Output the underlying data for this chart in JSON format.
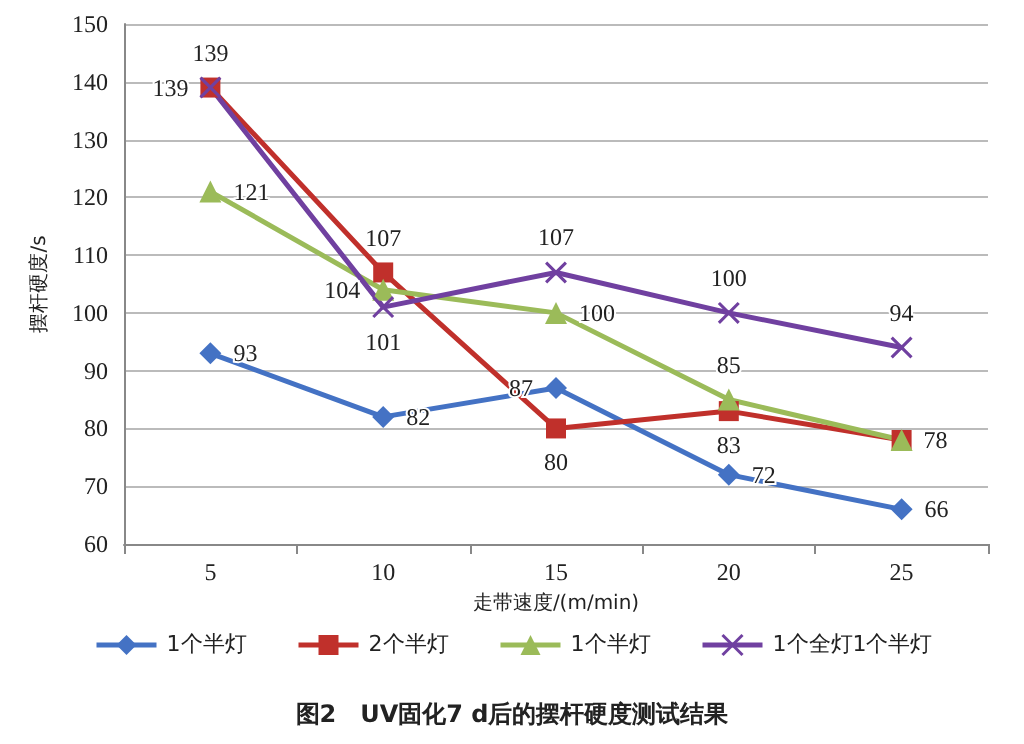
{
  "chart_data": {
    "type": "line",
    "title": "图2　UV固化7 d后的摆杆硬度测试结果",
    "xlabel": "走带速度/(m/min)",
    "ylabel": "摆杆硬度/s",
    "categories": [
      "5",
      "10",
      "15",
      "20",
      "25"
    ],
    "series": [
      {
        "name": "1个半灯",
        "color": "#4472c4",
        "marker": "diamond",
        "values": [
          93,
          82,
          87,
          72,
          66
        ],
        "value_labels": [
          "93",
          "82",
          "87",
          "72",
          "66"
        ]
      },
      {
        "name": "2个半灯",
        "color": "#c0302b",
        "marker": "square",
        "values": [
          139,
          107,
          80,
          83,
          78
        ],
        "value_labels": [
          "139",
          "107",
          "80",
          "83",
          "78"
        ]
      },
      {
        "name": "1个半灯",
        "color": "#9bbb59",
        "marker": "triangle",
        "values": [
          121,
          104,
          100,
          85,
          78
        ],
        "value_labels": [
          "121",
          "104",
          "100",
          "85",
          null
        ]
      },
      {
        "name": "1个全灯1个半灯",
        "color": "#7040a0",
        "marker": "cross",
        "values": [
          139,
          101,
          107,
          100,
          94
        ],
        "value_labels": [
          "139",
          "101",
          "107",
          "100",
          "94"
        ]
      }
    ],
    "ylim": [
      60,
      150
    ],
    "yticks": [
      60,
      70,
      80,
      90,
      100,
      110,
      120,
      130,
      140,
      150
    ],
    "grid": "y",
    "legend": "bottom",
    "line_style": "solid"
  }
}
